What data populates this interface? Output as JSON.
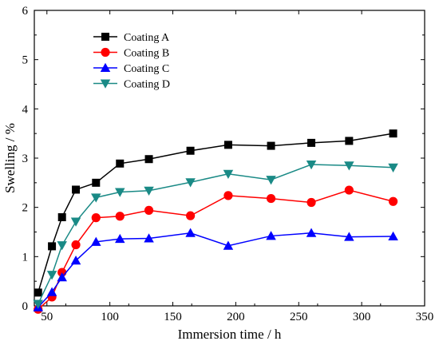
{
  "chart_data": {
    "type": "line",
    "xlabel": "Immersion time / h",
    "ylabel": "Swelling / %",
    "xlim": [
      40,
      350
    ],
    "ylim": [
      0,
      6
    ],
    "xticks": [
      50,
      100,
      150,
      200,
      250,
      300,
      350
    ],
    "yticks": [
      0,
      1,
      2,
      3,
      4,
      5,
      6
    ],
    "grid": false,
    "legend_position": "top-left",
    "x": [
      43,
      54,
      62,
      73,
      89,
      108,
      131,
      164,
      194,
      228,
      260,
      290,
      325
    ],
    "series": [
      {
        "name": "Coating A",
        "color": "#000000",
        "marker": "square",
        "values": [
          0.27,
          1.21,
          1.8,
          2.36,
          2.5,
          2.89,
          2.98,
          3.15,
          3.27,
          3.25,
          3.31,
          3.35,
          3.5
        ]
      },
      {
        "name": "Coating B",
        "color": "#ff0000",
        "marker": "circle",
        "values": [
          -0.07,
          0.18,
          0.68,
          1.24,
          1.79,
          1.82,
          1.94,
          1.83,
          2.24,
          2.18,
          2.1,
          2.35,
          2.12
        ]
      },
      {
        "name": "Coating C",
        "color": "#0000ff",
        "marker": "triangle-up",
        "values": [
          -0.03,
          0.28,
          0.58,
          0.92,
          1.3,
          1.36,
          1.37,
          1.48,
          1.22,
          1.42,
          1.48,
          1.4,
          1.41
        ]
      },
      {
        "name": "Coating D",
        "color": "#1a8a86",
        "marker": "triangle-down",
        "values": [
          0.04,
          0.63,
          1.23,
          1.71,
          2.2,
          2.31,
          2.34,
          2.51,
          2.68,
          2.56,
          2.87,
          2.85,
          2.81
        ]
      }
    ]
  }
}
